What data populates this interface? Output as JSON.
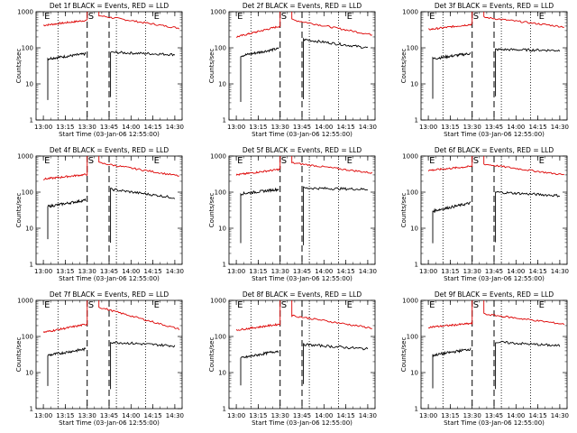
{
  "figure": {
    "tick_labels_x": [
      "13:00",
      "13:15",
      "13:30",
      "13:45",
      "14:00",
      "14:15",
      "14:30"
    ],
    "tick_labels_y": [
      "1",
      "10",
      "100",
      "1000"
    ],
    "marker_labels": [
      "E",
      "S",
      "E"
    ]
  },
  "chart_data": [
    {
      "type": "line",
      "title": "Det 1f BLACK = Events, RED = LLD",
      "xlabel": "Start Time (03-Jan-06 12:55:00)",
      "ylabel": "Counts/sec",
      "ylim": [
        1,
        1000
      ],
      "yscale": "log",
      "xlim": [
        "12:55",
        "14:35"
      ],
      "markers": {
        "E_start": "13:00",
        "S": "13:30",
        "E_end": "14:15"
      },
      "dotted_lines": [
        "13:10",
        "13:50",
        "14:10"
      ],
      "dashed_lines": [
        "13:30",
        "13:45"
      ],
      "series": [
        {
          "name": "RED = LLD",
          "color": "#dd0000",
          "segments": [
            {
              "x": [
                "13:00",
                "13:30"
              ],
              "values": [
                420,
                580
              ]
            },
            {
              "x": [
                "13:38",
                "14:33"
              ],
              "values": [
                780,
                350
              ]
            }
          ]
        },
        {
          "name": "BLACK = Events",
          "color": "#000000",
          "segments": [
            {
              "x": [
                "13:03",
                "13:29"
              ],
              "values": [
                50,
                68
              ]
            },
            {
              "x": [
                "13:46",
                "14:30"
              ],
              "values": [
                75,
                65
              ]
            }
          ]
        }
      ]
    },
    {
      "type": "line",
      "title": "Det 2f BLACK = Events, RED = LLD",
      "xlabel": "Start Time (03-Jan-06 12:55:00)",
      "ylabel": "Counts/sec",
      "ylim": [
        1,
        1000
      ],
      "yscale": "log",
      "xlim": [
        "12:55",
        "14:35"
      ],
      "markers": {
        "E_start": "13:00",
        "S": "13:30",
        "E_end": "14:15"
      },
      "dotted_lines": [
        "13:10",
        "13:50",
        "14:10"
      ],
      "dashed_lines": [
        "13:30",
        "13:45"
      ],
      "series": [
        {
          "name": "RED = LLD",
          "color": "#dd0000",
          "segments": [
            {
              "x": [
                "13:00",
                "13:30"
              ],
              "values": [
                200,
                400
              ]
            },
            {
              "x": [
                "13:38",
                "14:33"
              ],
              "values": [
                600,
                230
              ]
            }
          ]
        },
        {
          "name": "BLACK = Events",
          "color": "#000000",
          "segments": [
            {
              "x": [
                "13:03",
                "13:29"
              ],
              "values": [
                60,
                95
              ]
            },
            {
              "x": [
                "13:46",
                "14:30"
              ],
              "values": [
                170,
                100
              ]
            }
          ]
        }
      ]
    },
    {
      "type": "line",
      "title": "Det 3f BLACK = Events, RED = LLD",
      "xlabel": "Start Time (03-Jan-06 12:55:00)",
      "ylabel": "Counts/sec",
      "ylim": [
        1,
        1000
      ],
      "yscale": "log",
      "xlim": [
        "12:55",
        "14:35"
      ],
      "markers": {
        "E_start": "13:00",
        "S": "13:30",
        "E_end": "14:15"
      },
      "dotted_lines": [
        "13:10",
        "13:50",
        "14:10"
      ],
      "dashed_lines": [
        "13:30",
        "13:45"
      ],
      "series": [
        {
          "name": "RED = LLD",
          "color": "#dd0000",
          "segments": [
            {
              "x": [
                "13:00",
                "13:30"
              ],
              "values": [
                320,
                450
              ]
            },
            {
              "x": [
                "13:38",
                "14:33"
              ],
              "values": [
                700,
                380
              ]
            }
          ]
        },
        {
          "name": "BLACK = Events",
          "color": "#000000",
          "segments": [
            {
              "x": [
                "13:03",
                "13:29"
              ],
              "values": [
                50,
                70
              ]
            },
            {
              "x": [
                "13:46",
                "14:30"
              ],
              "values": [
                90,
                85
              ]
            }
          ]
        }
      ]
    },
    {
      "type": "line",
      "title": "Det 4f BLACK = Events, RED = LLD",
      "xlabel": "Start Time (03-Jan-06 12:55:00)",
      "ylabel": "Counts/sec",
      "ylim": [
        1,
        1000
      ],
      "yscale": "log",
      "xlim": [
        "12:55",
        "14:35"
      ],
      "markers": {
        "E_start": "13:00",
        "S": "13:30",
        "E_end": "14:15"
      },
      "dotted_lines": [
        "13:10",
        "13:50",
        "14:10"
      ],
      "dashed_lines": [
        "13:30",
        "13:45"
      ],
      "series": [
        {
          "name": "RED = LLD",
          "color": "#dd0000",
          "segments": [
            {
              "x": [
                "13:00",
                "13:30"
              ],
              "values": [
                230,
                310
              ]
            },
            {
              "x": [
                "13:38",
                "14:33"
              ],
              "values": [
                650,
                280
              ]
            }
          ]
        },
        {
          "name": "BLACK = Events",
          "color": "#000000",
          "segments": [
            {
              "x": [
                "13:03",
                "13:29"
              ],
              "values": [
                40,
                60
              ]
            },
            {
              "x": [
                "13:46",
                "14:30"
              ],
              "values": [
                120,
                70
              ]
            }
          ]
        }
      ]
    },
    {
      "type": "line",
      "title": "Det 5f BLACK = Events, RED = LLD",
      "xlabel": "Start Time (03-Jan-06 12:55:00)",
      "ylabel": "Counts/sec",
      "ylim": [
        1,
        1000
      ],
      "yscale": "log",
      "xlim": [
        "12:55",
        "14:35"
      ],
      "markers": {
        "E_start": "13:00",
        "S": "13:30",
        "E_end": "14:15"
      },
      "dotted_lines": [
        "13:10",
        "13:50",
        "14:10"
      ],
      "dashed_lines": [
        "13:30",
        "13:45"
      ],
      "series": [
        {
          "name": "RED = LLD",
          "color": "#dd0000",
          "segments": [
            {
              "x": [
                "13:00",
                "13:30"
              ],
              "values": [
                300,
                430
              ]
            },
            {
              "x": [
                "13:38",
                "14:33"
              ],
              "values": [
                650,
                340
              ]
            }
          ]
        },
        {
          "name": "BLACK = Events",
          "color": "#000000",
          "segments": [
            {
              "x": [
                "13:03",
                "13:29"
              ],
              "values": [
                90,
                120
              ]
            },
            {
              "x": [
                "13:46",
                "14:30"
              ],
              "values": [
                130,
                120
              ]
            }
          ]
        }
      ]
    },
    {
      "type": "line",
      "title": "Det 6f BLACK = Events, RED = LLD",
      "xlabel": "Start Time (03-Jan-06 12:55:00)",
      "ylabel": "Counts/sec",
      "ylim": [
        1,
        1000
      ],
      "yscale": "log",
      "xlim": [
        "12:55",
        "14:35"
      ],
      "markers": {
        "E_start": "13:00",
        "S": "13:30",
        "E_end": "14:15"
      },
      "dotted_lines": [
        "13:10",
        "13:50",
        "14:10"
      ],
      "dashed_lines": [
        "13:30",
        "13:45"
      ],
      "series": [
        {
          "name": "RED = LLD",
          "color": "#dd0000",
          "segments": [
            {
              "x": [
                "13:00",
                "13:30"
              ],
              "values": [
                400,
                520
              ]
            },
            {
              "x": [
                "13:38",
                "14:33"
              ],
              "values": [
                600,
                300
              ]
            }
          ]
        },
        {
          "name": "BLACK = Events",
          "color": "#000000",
          "segments": [
            {
              "x": [
                "13:03",
                "13:29"
              ],
              "values": [
                30,
                50
              ]
            },
            {
              "x": [
                "13:46",
                "14:30"
              ],
              "values": [
                100,
                80
              ]
            }
          ]
        }
      ]
    },
    {
      "type": "line",
      "title": "Det 7f BLACK = Events, RED = LLD",
      "xlabel": "Start Time (03-Jan-06 12:55:00)",
      "ylabel": "Counts/sec",
      "ylim": [
        1,
        1000
      ],
      "yscale": "log",
      "xlim": [
        "12:55",
        "14:35"
      ],
      "markers": {
        "E_start": "13:00",
        "S": "13:30",
        "E_end": "14:15"
      },
      "dotted_lines": [
        "13:10",
        "13:50",
        "14:10"
      ],
      "dashed_lines": [
        "13:30",
        "13:45"
      ],
      "series": [
        {
          "name": "RED = LLD",
          "color": "#dd0000",
          "segments": [
            {
              "x": [
                "13:00",
                "13:30"
              ],
              "values": [
                130,
                220
              ]
            },
            {
              "x": [
                "13:38",
                "14:33"
              ],
              "values": [
                650,
                160
              ]
            }
          ]
        },
        {
          "name": "BLACK = Events",
          "color": "#000000",
          "segments": [
            {
              "x": [
                "13:03",
                "13:29"
              ],
              "values": [
                30,
                45
              ]
            },
            {
              "x": [
                "13:46",
                "14:30"
              ],
              "values": [
                70,
                55
              ]
            }
          ]
        }
      ]
    },
    {
      "type": "line",
      "title": "Det 8f BLACK = Events, RED = LLD",
      "xlabel": "Start Time (03-Jan-06 12:55:00)",
      "ylabel": "Counts/sec",
      "ylim": [
        1,
        1000
      ],
      "yscale": "log",
      "xlim": [
        "12:55",
        "14:35"
      ],
      "markers": {
        "E_start": "13:00",
        "S": "13:30",
        "E_end": "14:15"
      },
      "dotted_lines": [
        "13:10",
        "13:50",
        "14:10"
      ],
      "dashed_lines": [
        "13:30",
        "13:45"
      ],
      "series": [
        {
          "name": "RED = LLD",
          "color": "#dd0000",
          "segments": [
            {
              "x": [
                "13:00",
                "13:30"
              ],
              "values": [
                150,
                220
              ]
            },
            {
              "x": [
                "13:38",
                "14:33"
              ],
              "values": [
                380,
                170
              ]
            }
          ]
        },
        {
          "name": "BLACK = Events",
          "color": "#000000",
          "segments": [
            {
              "x": [
                "13:03",
                "13:29"
              ],
              "values": [
                25,
                40
              ]
            },
            {
              "x": [
                "13:46",
                "14:30"
              ],
              "values": [
                60,
                45
              ]
            }
          ]
        }
      ]
    },
    {
      "type": "line",
      "title": "Det 9f BLACK = Events, RED = LLD",
      "xlabel": "Start Time (03-Jan-06 12:55:00)",
      "ylabel": "Counts/sec",
      "ylim": [
        1,
        1000
      ],
      "yscale": "log",
      "xlim": [
        "12:55",
        "14:35"
      ],
      "markers": {
        "E_start": "13:00",
        "S": "13:30",
        "E_end": "14:15"
      },
      "dotted_lines": [
        "13:10",
        "13:50",
        "14:10"
      ],
      "dashed_lines": [
        "13:30",
        "13:45"
      ],
      "series": [
        {
          "name": "RED = LLD",
          "color": "#dd0000",
          "segments": [
            {
              "x": [
                "13:00",
                "13:30"
              ],
              "values": [
                180,
                230
              ]
            },
            {
              "x": [
                "13:38",
                "14:33"
              ],
              "values": [
                420,
                220
              ]
            }
          ]
        },
        {
          "name": "BLACK = Events",
          "color": "#000000",
          "segments": [
            {
              "x": [
                "13:03",
                "13:29"
              ],
              "values": [
                30,
                45
              ]
            },
            {
              "x": [
                "13:46",
                "14:30"
              ],
              "values": [
                70,
                55
              ]
            }
          ]
        }
      ]
    }
  ]
}
